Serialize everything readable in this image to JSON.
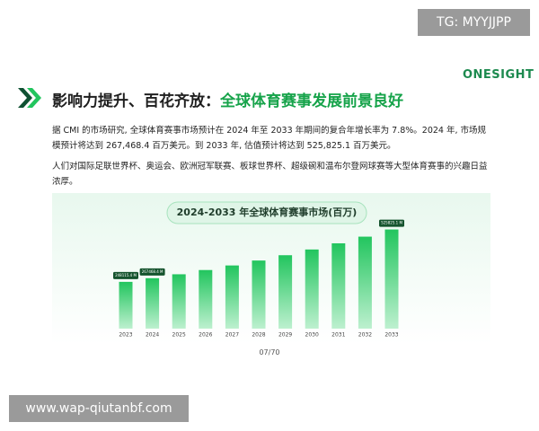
{
  "watermark_top": "TG: MYYJJPP",
  "logo": "ONESIGHT",
  "heading": {
    "lead": "影响力提升、百花齐放：",
    "highlight": "全球体育赛事发展前景良好"
  },
  "paragraphs": [
    "据 CMI 的市场研究, 全球体育赛事市场预计在 2024 年至 2033 年期间的复合年增长率为 7.8%。2024 年, 市场规模预计将达到 267,468.4 百万美元。到 2033 年, 估值预计将达到 525,825.1 百万美元。",
    "人们对国际足联世界杯、奥运会、欧洲冠军联赛、板球世界杯、超级碗和温布尔登网球赛等大型体育赛事的兴趣日益浓厚。"
  ],
  "chart_data": {
    "type": "bar",
    "title": "2024-2033 年全球体育赛事市场(百万)",
    "categories": [
      "2023",
      "2024",
      "2025",
      "2026",
      "2027",
      "2028",
      "2029",
      "2030",
      "2031",
      "2032",
      "2033"
    ],
    "values": [
      248115.4,
      267468.4,
      288331,
      310821,
      335065,
      361200,
      389374,
      419745,
      452485,
      487779,
      525825.1
    ],
    "value_labels": [
      "248115.4 M",
      "267468.4 M",
      null,
      null,
      null,
      null,
      null,
      null,
      null,
      null,
      "525825.1 M"
    ],
    "color": "#22c55e",
    "ylim": [
      0,
      600000
    ]
  },
  "page_number": "07/70",
  "watermark_bottom": "www.wap-qiutanbf.com"
}
